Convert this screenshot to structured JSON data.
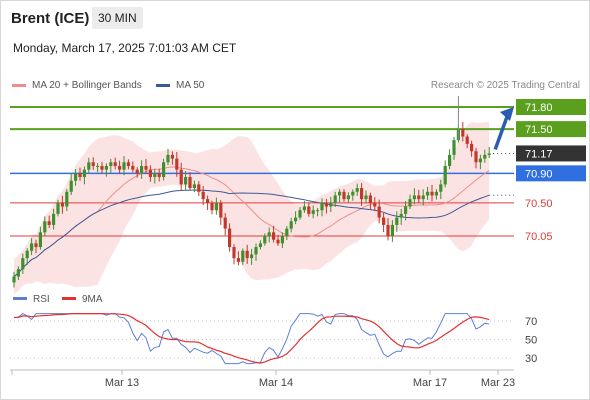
{
  "header": {
    "instrument": "Brent (ICE)",
    "interval": "30 MIN",
    "datetime": "Monday, March 17, 2025 7:01:03 AM CET"
  },
  "legend": {
    "ma20": "MA 20 + Bollinger Bands",
    "ma50": "MA 50",
    "ma20_color": "#f08c8c",
    "ma50_color": "#3b5998",
    "copyright": "Research © 2025 Trading Central"
  },
  "chart_data": [
    {
      "type": "candlestick",
      "title": "",
      "x_ticks": [
        "Mar 13",
        "Mar 14",
        "Mar 17",
        "Mar 23"
      ],
      "y_range": [
        69.4,
        71.95
      ],
      "levels": [
        {
          "value": 71.8,
          "label": "71.80",
          "kind": "resistance",
          "color": "#5aa01e"
        },
        {
          "value": 71.5,
          "label": "71.50",
          "kind": "resistance",
          "color": "#5aa01e"
        },
        {
          "value": 71.17,
          "label": "71.17",
          "kind": "last",
          "color": "#333333"
        },
        {
          "value": 70.9,
          "label": "70.90",
          "kind": "pivot",
          "color": "#2f6fe0"
        },
        {
          "value": 70.5,
          "label": "70.50",
          "kind": "support",
          "color": "#e23b3b"
        },
        {
          "value": 70.05,
          "label": "70.05",
          "kind": "support",
          "color": "#e23b3b"
        }
      ],
      "close": [
        69.5,
        69.6,
        69.75,
        69.85,
        69.95,
        69.9,
        70.1,
        70.25,
        70.2,
        70.35,
        70.5,
        70.45,
        70.65,
        70.8,
        70.9,
        70.85,
        70.95,
        71.05,
        71.0,
        71.0,
        70.95,
        71.0,
        71.05,
        71.0,
        70.95,
        71.05,
        71.0,
        70.95,
        70.9,
        71.0,
        70.95,
        70.85,
        70.9,
        70.85,
        71.05,
        71.15,
        71.1,
        70.95,
        70.75,
        70.85,
        70.7,
        70.75,
        70.65,
        70.55,
        70.5,
        70.4,
        70.5,
        70.3,
        70.15,
        69.9,
        69.75,
        69.7,
        69.85,
        69.75,
        69.8,
        69.9,
        69.95,
        70.05,
        70.1,
        70.0,
        69.95,
        70.05,
        70.15,
        70.25,
        70.3,
        70.4,
        70.45,
        70.35,
        70.4,
        70.4,
        70.5,
        70.45,
        70.5,
        70.6,
        70.65,
        70.55,
        70.6,
        70.65,
        70.7,
        70.55,
        70.6,
        70.5,
        70.45,
        70.3,
        70.2,
        70.05,
        70.2,
        70.3,
        70.35,
        70.45,
        70.55,
        70.6,
        70.55,
        70.6,
        70.65,
        70.6,
        70.65,
        70.75,
        71.0,
        71.15,
        71.35,
        71.5,
        71.4,
        71.3,
        71.2,
        71.05,
        71.1,
        71.15,
        71.17
      ],
      "ma20_last": 71.02,
      "ma50_last": 70.75,
      "arrow": {
        "from": 71.17,
        "to": 71.8,
        "color": "#2a5db0"
      }
    },
    {
      "type": "line",
      "title": "",
      "series": [
        {
          "name": "RSI",
          "color": "#5b7fd6"
        },
        {
          "name": "9MA",
          "color": "#e53030"
        }
      ],
      "y_ticks": [
        "70",
        "50",
        "30"
      ],
      "y_range": [
        20,
        80
      ]
    }
  ]
}
